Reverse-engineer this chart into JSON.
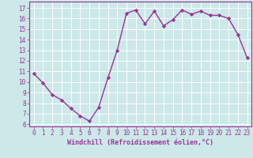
{
  "x": [
    0,
    1,
    2,
    3,
    4,
    5,
    6,
    7,
    8,
    9,
    10,
    11,
    12,
    13,
    14,
    15,
    16,
    17,
    18,
    19,
    20,
    21,
    22,
    23
  ],
  "y": [
    10.8,
    9.9,
    8.8,
    8.3,
    7.5,
    6.8,
    6.3,
    7.6,
    10.4,
    13.0,
    16.5,
    16.8,
    15.5,
    16.7,
    15.3,
    15.9,
    16.8,
    16.4,
    16.7,
    16.3,
    16.3,
    16.0,
    14.5,
    12.3
  ],
  "line_color": "#993399",
  "marker": "D",
  "marker_size": 2.2,
  "bg_color": "#cce8e8",
  "grid_color": "#ffffff",
  "xlabel": "Windchill (Refroidissement éolien,°C)",
  "xlabel_color": "#993399",
  "tick_color": "#993399",
  "spine_color": "#993399",
  "ylim": [
    5.8,
    17.6
  ],
  "xlim": [
    -0.5,
    23.5
  ],
  "yticks": [
    6,
    7,
    8,
    9,
    10,
    11,
    12,
    13,
    14,
    15,
    16,
    17
  ],
  "xticks": [
    0,
    1,
    2,
    3,
    4,
    5,
    6,
    7,
    8,
    9,
    10,
    11,
    12,
    13,
    14,
    15,
    16,
    17,
    18,
    19,
    20,
    21,
    22,
    23
  ],
  "tick_fontsize": 5.5,
  "xlabel_fontsize": 6.0,
  "linewidth": 1.0
}
